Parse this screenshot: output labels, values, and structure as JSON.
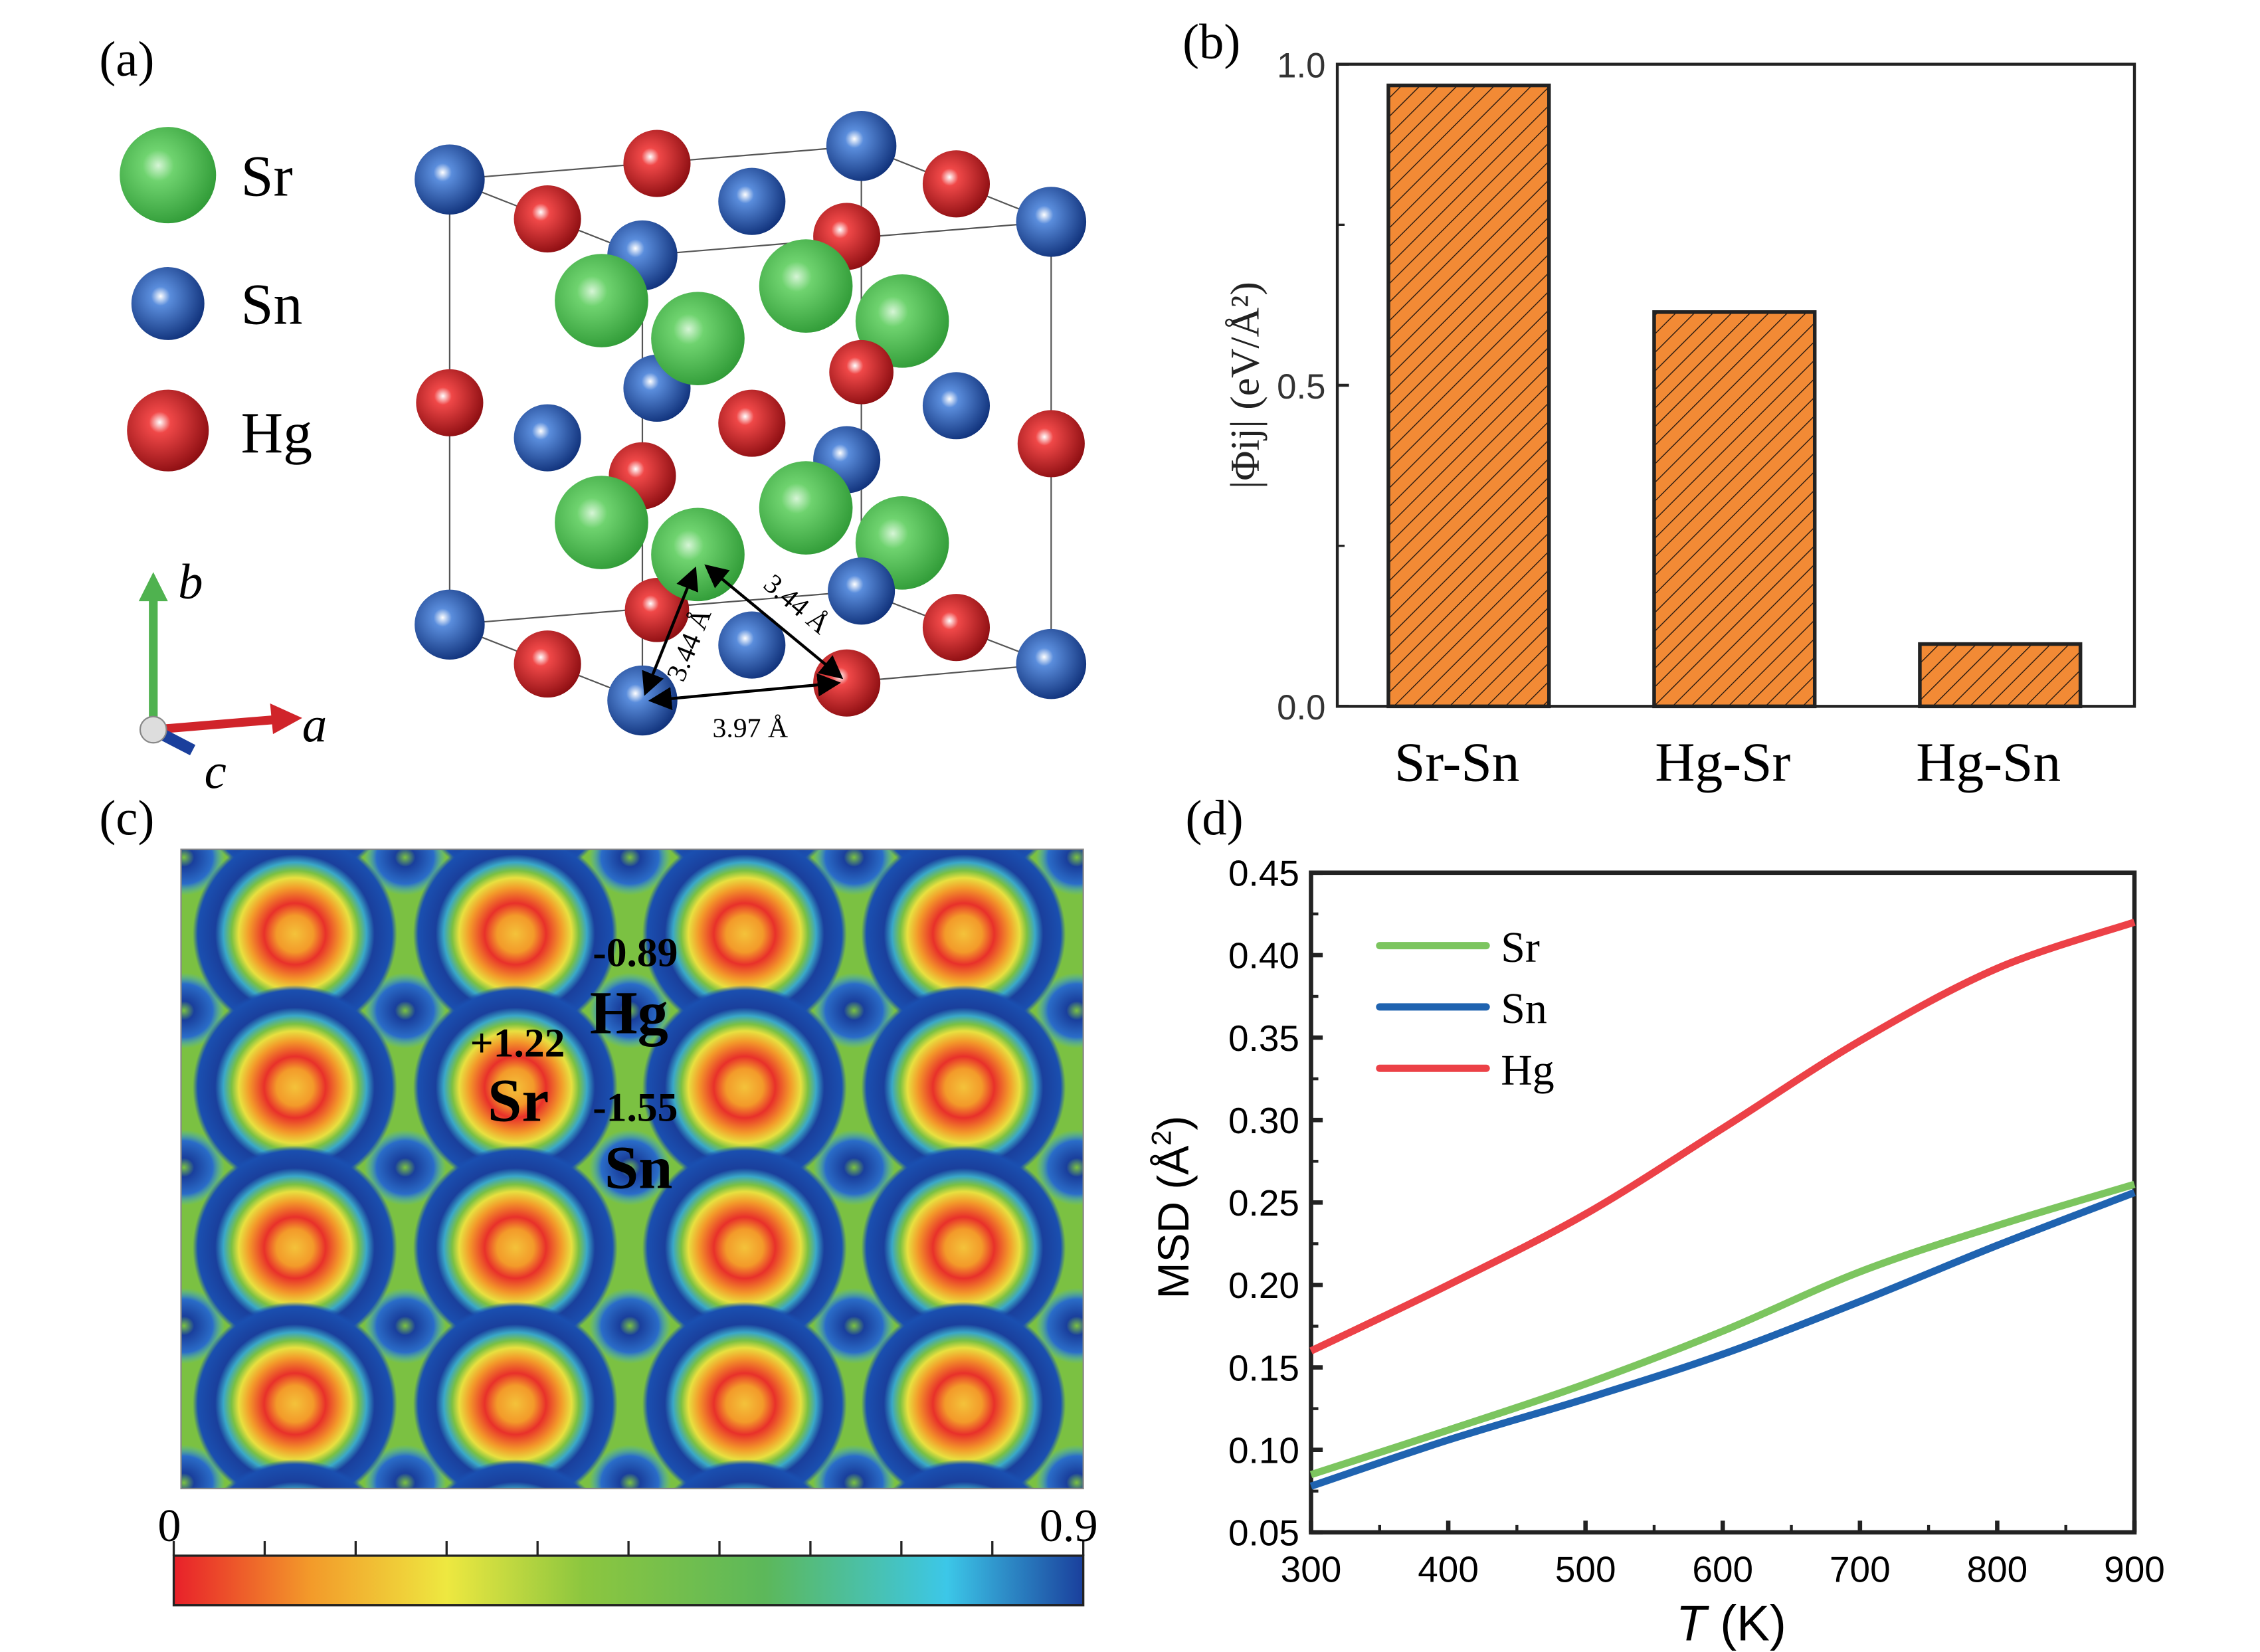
{
  "panel_labels": {
    "a": "(a)",
    "b": "(b)",
    "c": "(c)",
    "d": "(d)"
  },
  "panel_a": {
    "legend": [
      {
        "label": "Sr",
        "color": "#4cbf4c"
      },
      {
        "label": "Sn",
        "color": "#1f4fa8"
      },
      {
        "label": "Hg",
        "color": "#d9141e"
      }
    ],
    "axes": {
      "a": "a",
      "b": "b",
      "c": "c"
    },
    "distances": [
      "3.44 Å",
      "3.44 Å",
      "3.97 Å"
    ]
  },
  "panel_c": {
    "annotations": [
      {
        "text": "-0.89"
      },
      {
        "text": "Hg"
      },
      {
        "text": "+1.22"
      },
      {
        "text": "Sr"
      },
      {
        "text": "-1.55"
      },
      {
        "text": "Sn"
      }
    ],
    "colorbar": {
      "min": "0",
      "max": "0.9",
      "colors": [
        "#e8202a",
        "#f39a2a",
        "#eee840",
        "#7bc142",
        "#5cb85a",
        "#3cc7e8",
        "#1a3f9c"
      ]
    }
  },
  "chart_data": [
    {
      "type": "bar",
      "panel": "(b)",
      "categories": [
        "Sr-Sn",
        "Hg-Sr",
        "Hg-Sn"
      ],
      "values": [
        0.967,
        0.614,
        0.097
      ],
      "ylabel": "|Φij| (eV/Å²)",
      "ylabel_parts": {
        "main": "|Φ",
        "sub": "ij",
        "rest": "| (eV/Å",
        "sup": "2",
        "end": ")"
      },
      "ylim": [
        0,
        1.0
      ],
      "yticks": [
        "0.0",
        "0.5",
        "1.0"
      ],
      "bar_color": "#f28a35",
      "hatch": "diagonal"
    },
    {
      "type": "line",
      "panel": "(d)",
      "x": [
        300,
        400,
        500,
        600,
        700,
        800,
        900
      ],
      "series": [
        {
          "name": "Sr",
          "color": "#7cc55f",
          "values": [
            0.085,
            0.112,
            0.14,
            0.172,
            0.208,
            0.236,
            0.261
          ]
        },
        {
          "name": "Sn",
          "color": "#1f63b0",
          "values": [
            0.078,
            0.106,
            0.131,
            0.158,
            0.19,
            0.224,
            0.256
          ]
        },
        {
          "name": "Hg",
          "color": "#ec4147",
          "values": [
            0.16,
            0.2,
            0.243,
            0.295,
            0.348,
            0.392,
            0.42
          ]
        }
      ],
      "xlabel": "T (K)",
      "xlabel_parts": {
        "italic": "T",
        "rest": " (K)"
      },
      "ylabel": "MSD (Å²)",
      "ylabel_parts": {
        "main": "MSD (Å",
        "sup": "2",
        "end": ")"
      },
      "xlim": [
        300,
        900
      ],
      "ylim": [
        0.05,
        0.45
      ],
      "xticks": [
        "300",
        "400",
        "500",
        "600",
        "700",
        "800",
        "900"
      ],
      "yticks": [
        "0.05",
        "0.10",
        "0.15",
        "0.20",
        "0.25",
        "0.30",
        "0.35",
        "0.40",
        "0.45"
      ],
      "legend_position": "top-left"
    }
  ]
}
